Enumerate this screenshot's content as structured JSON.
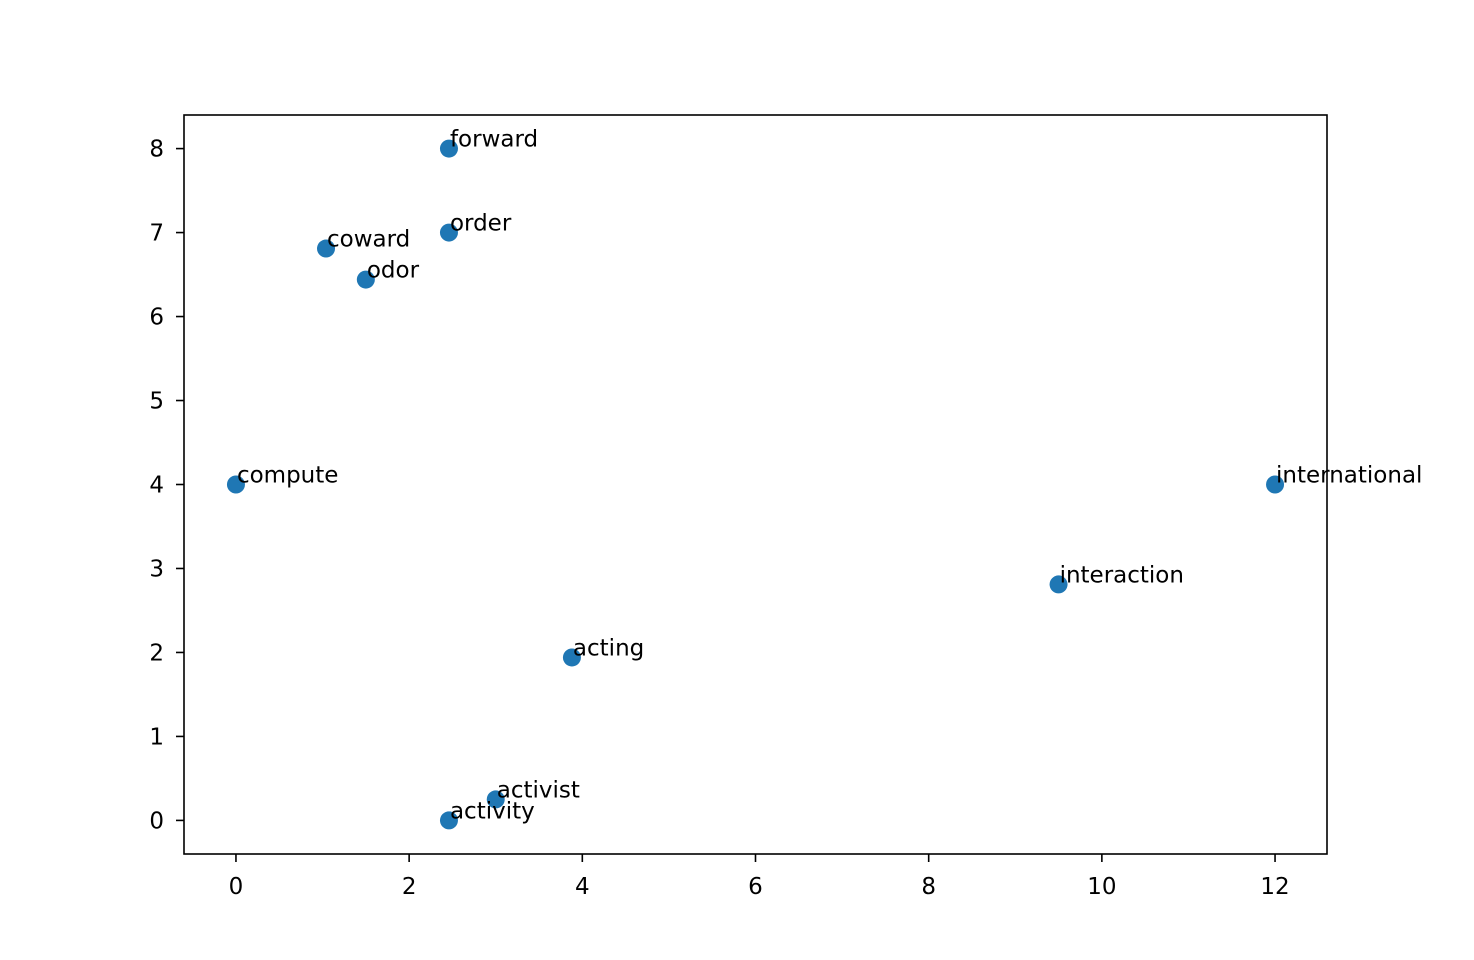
{
  "chart_data": {
    "type": "scatter",
    "title": "",
    "xlabel": "",
    "ylabel": "",
    "xlim": [
      -0.6,
      12.6
    ],
    "ylim": [
      -0.4,
      8.4
    ],
    "xticks": [
      0,
      2,
      4,
      6,
      8,
      10,
      12
    ],
    "yticks": [
      0,
      1,
      2,
      3,
      4,
      5,
      6,
      7,
      8
    ],
    "grid": false,
    "legend": "none",
    "marker_color": "#1f77b4",
    "points": [
      {
        "label": "forward",
        "x": 2.46,
        "y": 8.0
      },
      {
        "label": "order",
        "x": 2.46,
        "y": 7.0
      },
      {
        "label": "coward",
        "x": 1.04,
        "y": 6.81
      },
      {
        "label": "odor",
        "x": 1.5,
        "y": 6.44
      },
      {
        "label": "compute",
        "x": 0.0,
        "y": 4.0
      },
      {
        "label": "international",
        "x": 12.0,
        "y": 4.0
      },
      {
        "label": "interaction",
        "x": 9.5,
        "y": 2.81
      },
      {
        "label": "acting",
        "x": 3.88,
        "y": 1.94
      },
      {
        "label": "activist",
        "x": 3.0,
        "y": 0.25
      },
      {
        "label": "activity",
        "x": 2.46,
        "y": 0.0
      }
    ]
  }
}
